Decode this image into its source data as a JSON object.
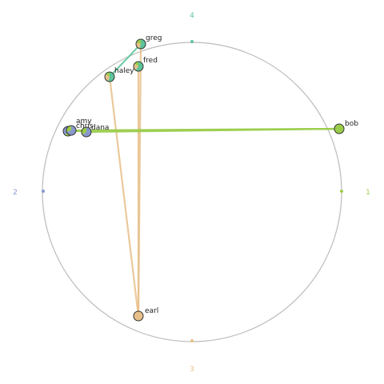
{
  "colors": {
    "circle": "#bbbbbb",
    "node_stroke": "#333333",
    "cat1": "#9acd4a",
    "cat2": "#8898cc",
    "cat3": "#e8c08a",
    "cat4": "#5cc49a"
  },
  "anchors": [
    {
      "label": "1",
      "color": "#9acd4a",
      "angle": 0
    },
    {
      "label": "2",
      "color": "#8898cc",
      "angle": 180
    },
    {
      "label": "3",
      "color": "#e8c08a",
      "angle": 90
    },
    {
      "label": "4",
      "color": "#5cc49a",
      "angle": 270
    }
  ],
  "nodes": [
    {
      "label": "greg",
      "mix": {
        "cat4": 0.55,
        "cat3": 0.25,
        "cat1": 0.2
      }
    },
    {
      "label": "fred",
      "mix": {
        "cat4": 0.6,
        "cat3": 0.25,
        "cat1": 0.15
      }
    },
    {
      "label": "haley",
      "mix": {
        "cat4": 0.55,
        "cat3": 0.3,
        "cat1": 0.15
      }
    },
    {
      "label": "amy",
      "mix": {
        "cat1": 0.6,
        "cat2": 0.4
      }
    },
    {
      "label": "chris",
      "mix": {
        "cat2": 0.7,
        "cat1": 0.3
      }
    },
    {
      "label": "dana",
      "mix": {
        "cat2": 0.65,
        "cat1": 0.35
      }
    },
    {
      "label": "bob",
      "mix": {
        "cat1": 1.0
      }
    },
    {
      "label": "earl",
      "mix": {
        "cat3": 1.0
      }
    }
  ],
  "edges": [
    {
      "source": "greg",
      "target": "haley",
      "color": "#5cc49a"
    },
    {
      "source": "greg",
      "target": "earl",
      "color": "#e8c08a"
    },
    {
      "source": "fred",
      "target": "earl",
      "color": "#e8c08a"
    },
    {
      "source": "haley",
      "target": "earl",
      "color": "#e8c08a"
    },
    {
      "source": "amy",
      "target": "bob",
      "color": "#9acd4a"
    },
    {
      "source": "chris",
      "target": "bob",
      "color": "#9acd4a"
    },
    {
      "source": "dana",
      "target": "bob",
      "color": "#9acd4a"
    }
  ]
}
